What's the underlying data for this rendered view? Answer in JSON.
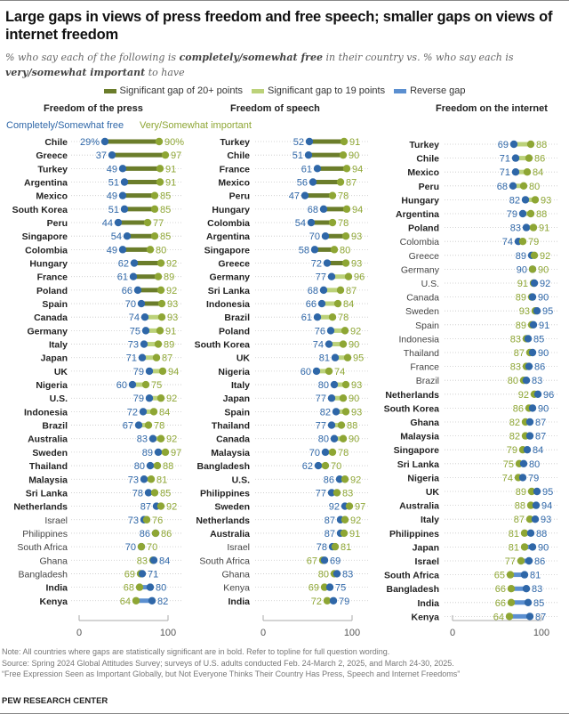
{
  "title": "Large gaps in views of press freedom and free speech; smaller gaps on views of internet freedom",
  "subtitle_parts": {
    "p1": "% who say each of the following is ",
    "b1": "completely/somewhat free",
    "p2": " in their country vs. % who say each is ",
    "b2": "very/somewhat important",
    "p3": " to have"
  },
  "legend": [
    {
      "label": "Significant gap of 20+ points",
      "color": "#6b7d2b"
    },
    {
      "label": "Significant gap to 19 points",
      "color": "#bcd27a"
    },
    {
      "label": "Reverse gap",
      "color": "#5b8fd0"
    }
  ],
  "series_labels": {
    "free": "Completely/Somewhat free",
    "important": "Very/Somewhat important"
  },
  "colors": {
    "free": "#2f67a8",
    "important": "#8ea634",
    "dark_gap": "#6b7d2b",
    "light_gap": "#bcd27a",
    "reverse": "#5b8fd0",
    "dots_line": "#c8c8c8"
  },
  "chart_data": [
    {
      "type": "dumbbell",
      "title": "Freedom of the press",
      "xlim": [
        0,
        100
      ],
      "ticks": [
        "0",
        "100"
      ],
      "rows": [
        {
          "country": "Chile",
          "free": 29,
          "important": 90,
          "bold": true,
          "gap": "large",
          "pct": true
        },
        {
          "country": "Greece",
          "free": 37,
          "important": 97,
          "bold": true,
          "gap": "large"
        },
        {
          "country": "Turkey",
          "free": 49,
          "important": 91,
          "bold": true,
          "gap": "large"
        },
        {
          "country": "Argentina",
          "free": 51,
          "important": 91,
          "bold": true,
          "gap": "large"
        },
        {
          "country": "Mexico",
          "free": 49,
          "important": 85,
          "bold": true,
          "gap": "large"
        },
        {
          "country": "South Korea",
          "free": 51,
          "important": 85,
          "bold": true,
          "gap": "large"
        },
        {
          "country": "Peru",
          "free": 44,
          "important": 77,
          "bold": true,
          "gap": "large"
        },
        {
          "country": "Singapore",
          "free": 54,
          "important": 85,
          "bold": true,
          "gap": "large"
        },
        {
          "country": "Colombia",
          "free": 49,
          "important": 80,
          "bold": true,
          "gap": "large"
        },
        {
          "country": "Hungary",
          "free": 62,
          "important": 92,
          "bold": true,
          "gap": "large"
        },
        {
          "country": "France",
          "free": 61,
          "important": 89,
          "bold": true,
          "gap": "large"
        },
        {
          "country": "Poland",
          "free": 66,
          "important": 92,
          "bold": true,
          "gap": "large"
        },
        {
          "country": "Spain",
          "free": 70,
          "important": 93,
          "bold": true,
          "gap": "large"
        },
        {
          "country": "Canada",
          "free": 74,
          "important": 93,
          "bold": true,
          "gap": "small"
        },
        {
          "country": "Germany",
          "free": 75,
          "important": 91,
          "bold": true,
          "gap": "small"
        },
        {
          "country": "Italy",
          "free": 73,
          "important": 89,
          "bold": true,
          "gap": "small"
        },
        {
          "country": "Japan",
          "free": 71,
          "important": 87,
          "bold": true,
          "gap": "small"
        },
        {
          "country": "UK",
          "free": 79,
          "important": 94,
          "bold": true,
          "gap": "small"
        },
        {
          "country": "Nigeria",
          "free": 60,
          "important": 75,
          "bold": true,
          "gap": "small"
        },
        {
          "country": "U.S.",
          "free": 79,
          "important": 92,
          "bold": true,
          "gap": "small"
        },
        {
          "country": "Indonesia",
          "free": 72,
          "important": 84,
          "bold": true,
          "gap": "small"
        },
        {
          "country": "Brazil",
          "free": 67,
          "important": 78,
          "bold": true,
          "gap": "small"
        },
        {
          "country": "Australia",
          "free": 83,
          "important": 92,
          "bold": true,
          "gap": "small"
        },
        {
          "country": "Sweden",
          "free": 89,
          "important": 97,
          "bold": true,
          "gap": "small"
        },
        {
          "country": "Thailand",
          "free": 80,
          "important": 88,
          "bold": true,
          "gap": "small"
        },
        {
          "country": "Malaysia",
          "free": 73,
          "important": 81,
          "bold": true,
          "gap": "small"
        },
        {
          "country": "Sri Lanka",
          "free": 78,
          "important": 85,
          "bold": true,
          "gap": "small"
        },
        {
          "country": "Netherlands",
          "free": 87,
          "important": 92,
          "bold": true,
          "gap": "small"
        },
        {
          "country": "Israel",
          "free": 73,
          "important": 76,
          "bold": false,
          "gap": "none"
        },
        {
          "country": "Philippines",
          "free": 86,
          "important": 86,
          "bold": false,
          "gap": "none"
        },
        {
          "country": "South Africa",
          "free": 70,
          "important": 70,
          "bold": false,
          "gap": "none"
        },
        {
          "country": "Ghana",
          "free": 84,
          "important": 83,
          "bold": false,
          "gap": "none"
        },
        {
          "country": "Bangladesh",
          "free": 71,
          "important": 69,
          "bold": false,
          "gap": "none"
        },
        {
          "country": "India",
          "free": 80,
          "important": 68,
          "bold": true,
          "gap": "reverse"
        },
        {
          "country": "Kenya",
          "free": 82,
          "important": 64,
          "bold": true,
          "gap": "reverse"
        }
      ]
    },
    {
      "type": "dumbbell",
      "title": "Freedom of speech",
      "xlim": [
        0,
        100
      ],
      "ticks": [
        "0",
        "100"
      ],
      "rows": [
        {
          "country": "Turkey",
          "free": 52,
          "important": 91,
          "bold": true,
          "gap": "large"
        },
        {
          "country": "Chile",
          "free": 51,
          "important": 90,
          "bold": true,
          "gap": "large"
        },
        {
          "country": "France",
          "free": 61,
          "important": 94,
          "bold": true,
          "gap": "large"
        },
        {
          "country": "Mexico",
          "free": 56,
          "important": 87,
          "bold": true,
          "gap": "large"
        },
        {
          "country": "Peru",
          "free": 47,
          "important": 78,
          "bold": true,
          "gap": "large"
        },
        {
          "country": "Hungary",
          "free": 68,
          "important": 94,
          "bold": true,
          "gap": "large"
        },
        {
          "country": "Colombia",
          "free": 54,
          "important": 78,
          "bold": true,
          "gap": "large"
        },
        {
          "country": "Argentina",
          "free": 70,
          "important": 93,
          "bold": true,
          "gap": "large"
        },
        {
          "country": "Singapore",
          "free": 58,
          "important": 80,
          "bold": true,
          "gap": "large"
        },
        {
          "country": "Greece",
          "free": 72,
          "important": 93,
          "bold": true,
          "gap": "large"
        },
        {
          "country": "Germany",
          "free": 77,
          "important": 96,
          "bold": true,
          "gap": "small"
        },
        {
          "country": "Sri Lanka",
          "free": 68,
          "important": 87,
          "bold": true,
          "gap": "small"
        },
        {
          "country": "Indonesia",
          "free": 66,
          "important": 84,
          "bold": true,
          "gap": "small"
        },
        {
          "country": "Brazil",
          "free": 61,
          "important": 78,
          "bold": true,
          "gap": "small"
        },
        {
          "country": "Poland",
          "free": 76,
          "important": 92,
          "bold": true,
          "gap": "small"
        },
        {
          "country": "South Korea",
          "free": 74,
          "important": 90,
          "bold": true,
          "gap": "small"
        },
        {
          "country": "UK",
          "free": 81,
          "important": 95,
          "bold": true,
          "gap": "small"
        },
        {
          "country": "Nigeria",
          "free": 60,
          "important": 74,
          "bold": true,
          "gap": "small"
        },
        {
          "country": "Italy",
          "free": 80,
          "important": 93,
          "bold": true,
          "gap": "small"
        },
        {
          "country": "Japan",
          "free": 77,
          "important": 90,
          "bold": true,
          "gap": "small"
        },
        {
          "country": "Spain",
          "free": 82,
          "important": 93,
          "bold": true,
          "gap": "small"
        },
        {
          "country": "Thailand",
          "free": 77,
          "important": 88,
          "bold": true,
          "gap": "small"
        },
        {
          "country": "Canada",
          "free": 80,
          "important": 90,
          "bold": true,
          "gap": "small"
        },
        {
          "country": "Malaysia",
          "free": 70,
          "important": 78,
          "bold": true,
          "gap": "small"
        },
        {
          "country": "Bangladesh",
          "free": 62,
          "important": 70,
          "bold": true,
          "gap": "small"
        },
        {
          "country": "U.S.",
          "free": 86,
          "important": 92,
          "bold": true,
          "gap": "small"
        },
        {
          "country": "Philippines",
          "free": 77,
          "important": 83,
          "bold": true,
          "gap": "small"
        },
        {
          "country": "Sweden",
          "free": 92,
          "important": 97,
          "bold": true,
          "gap": "small"
        },
        {
          "country": "Netherlands",
          "free": 87,
          "important": 92,
          "bold": true,
          "gap": "small"
        },
        {
          "country": "Australia",
          "free": 87,
          "important": 91,
          "bold": true,
          "gap": "small"
        },
        {
          "country": "Israel",
          "free": 78,
          "important": 81,
          "bold": false,
          "gap": "none"
        },
        {
          "country": "South Africa",
          "free": 69,
          "important": 67,
          "bold": false,
          "gap": "none"
        },
        {
          "country": "Ghana",
          "free": 83,
          "important": 80,
          "bold": false,
          "gap": "none"
        },
        {
          "country": "Kenya",
          "free": 75,
          "important": 69,
          "bold": false,
          "gap": "none"
        },
        {
          "country": "India",
          "free": 79,
          "important": 72,
          "bold": true,
          "gap": "reverse"
        }
      ]
    },
    {
      "type": "dumbbell",
      "title": "Freedom on the internet",
      "xlim": [
        0,
        100
      ],
      "ticks": [
        "0",
        "100"
      ],
      "rows": [
        {
          "country": "Turkey",
          "free": 69,
          "important": 88,
          "bold": true,
          "gap": "small"
        },
        {
          "country": "Chile",
          "free": 71,
          "important": 86,
          "bold": true,
          "gap": "small"
        },
        {
          "country": "Mexico",
          "free": 71,
          "important": 84,
          "bold": true,
          "gap": "small"
        },
        {
          "country": "Peru",
          "free": 68,
          "important": 80,
          "bold": true,
          "gap": "small"
        },
        {
          "country": "Hungary",
          "free": 82,
          "important": 93,
          "bold": true,
          "gap": "small"
        },
        {
          "country": "Argentina",
          "free": 79,
          "important": 88,
          "bold": true,
          "gap": "small"
        },
        {
          "country": "Poland",
          "free": 83,
          "important": 91,
          "bold": true,
          "gap": "small"
        },
        {
          "country": "Colombia",
          "free": 74,
          "important": 79,
          "bold": false,
          "gap": "none"
        },
        {
          "country": "Greece",
          "free": 89,
          "important": 92,
          "bold": false,
          "gap": "none"
        },
        {
          "country": "Germany",
          "free": 90,
          "important": 90,
          "bold": false,
          "gap": "none"
        },
        {
          "country": "U.S.",
          "free": 92,
          "important": 91,
          "bold": false,
          "gap": "none"
        },
        {
          "country": "Canada",
          "free": 90,
          "important": 89,
          "bold": false,
          "gap": "none"
        },
        {
          "country": "Sweden",
          "free": 95,
          "important": 93,
          "bold": false,
          "gap": "none"
        },
        {
          "country": "Spain",
          "free": 91,
          "important": 89,
          "bold": false,
          "gap": "none"
        },
        {
          "country": "Indonesia",
          "free": 85,
          "important": 83,
          "bold": false,
          "gap": "none"
        },
        {
          "country": "Thailand",
          "free": 90,
          "important": 87,
          "bold": false,
          "gap": "none"
        },
        {
          "country": "France",
          "free": 86,
          "important": 83,
          "bold": false,
          "gap": "none"
        },
        {
          "country": "Brazil",
          "free": 83,
          "important": 80,
          "bold": false,
          "gap": "none"
        },
        {
          "country": "Netherlands",
          "free": 96,
          "important": 92,
          "bold": true,
          "gap": "reverse"
        },
        {
          "country": "South Korea",
          "free": 90,
          "important": 86,
          "bold": true,
          "gap": "reverse"
        },
        {
          "country": "Ghana",
          "free": 87,
          "important": 82,
          "bold": true,
          "gap": "reverse"
        },
        {
          "country": "Malaysia",
          "free": 87,
          "important": 82,
          "bold": true,
          "gap": "reverse"
        },
        {
          "country": "Singapore",
          "free": 84,
          "important": 79,
          "bold": true,
          "gap": "reverse"
        },
        {
          "country": "Sri Lanka",
          "free": 80,
          "important": 75,
          "bold": true,
          "gap": "reverse"
        },
        {
          "country": "Nigeria",
          "free": 79,
          "important": 74,
          "bold": true,
          "gap": "reverse"
        },
        {
          "country": "UK",
          "free": 95,
          "important": 89,
          "bold": true,
          "gap": "reverse"
        },
        {
          "country": "Australia",
          "free": 94,
          "important": 88,
          "bold": true,
          "gap": "reverse"
        },
        {
          "country": "Italy",
          "free": 93,
          "important": 87,
          "bold": true,
          "gap": "reverse"
        },
        {
          "country": "Philippines",
          "free": 88,
          "important": 81,
          "bold": true,
          "gap": "reverse"
        },
        {
          "country": "Japan",
          "free": 90,
          "important": 81,
          "bold": true,
          "gap": "reverse"
        },
        {
          "country": "Israel",
          "free": 86,
          "important": 77,
          "bold": true,
          "gap": "reverse"
        },
        {
          "country": "South Africa",
          "free": 81,
          "important": 65,
          "bold": true,
          "gap": "reverse"
        },
        {
          "country": "Bangladesh",
          "free": 83,
          "important": 66,
          "bold": true,
          "gap": "reverse"
        },
        {
          "country": "India",
          "free": 85,
          "important": 66,
          "bold": true,
          "gap": "reverse"
        },
        {
          "country": "Kenya",
          "free": 87,
          "important": 64,
          "bold": true,
          "gap": "reverse"
        }
      ]
    }
  ],
  "footer": {
    "note": "Note: All countries where gaps are statistically significant are in bold. Refer to topline for full question wording.",
    "source": "Source: Spring 2024 Global Attitudes Survey; surveys of U.S. adults conducted Feb. 24-March 2, 2025, and March 24-30, 2025.",
    "report": "“Free Expression Seen as Important Globally, but Not Everyone Thinks Their Country Has Press, Speech and Internet Freedoms”",
    "brand": "PEW RESEARCH CENTER"
  }
}
